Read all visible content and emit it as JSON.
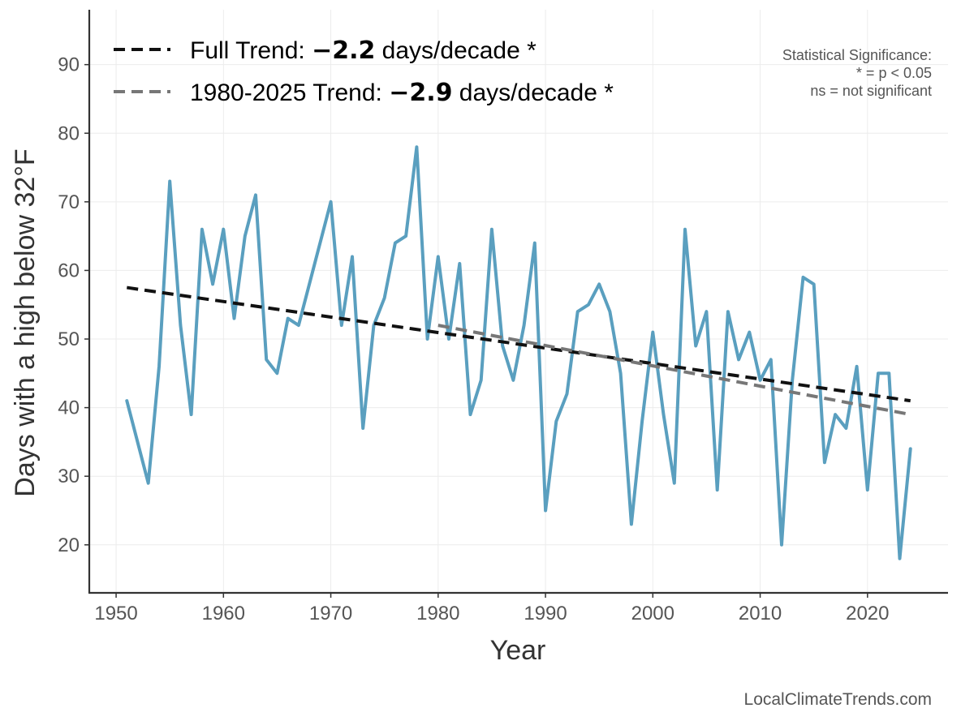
{
  "chart_data": {
    "type": "line",
    "title": "",
    "xlabel": "Year",
    "ylabel": "Days with a high below 32°F",
    "xlim": [
      1947.5,
      2027.5
    ],
    "ylim": [
      13,
      98
    ],
    "x_ticks": [
      1950,
      1960,
      1970,
      1980,
      1990,
      2000,
      2010,
      2020
    ],
    "y_ticks": [
      20,
      30,
      40,
      50,
      60,
      70,
      80,
      90
    ],
    "grid": true,
    "legend_position": "top-left",
    "series": [
      {
        "color": "#5a9fbf",
        "x": [
          1951,
          1953,
          1954,
          1955,
          1956,
          1957,
          1958,
          1959,
          1960,
          1961,
          1962,
          1963,
          1964,
          1965,
          1966,
          1967,
          1970,
          1971,
          1972,
          1973,
          1974,
          1975,
          1976,
          1977,
          1978,
          1979,
          1980,
          1981,
          1982,
          1983,
          1984,
          1985,
          1986,
          1987,
          1988,
          1989,
          1990,
          1991,
          1992,
          1993,
          1994,
          1995,
          1996,
          1997,
          1998,
          1999,
          2000,
          2001,
          2002,
          2003,
          2004,
          2005,
          2006,
          2007,
          2008,
          2009,
          2010,
          2011,
          2012,
          2013,
          2014,
          2015,
          2016,
          2017,
          2018,
          2019,
          2020,
          2021,
          2022,
          2023,
          2024
        ],
        "values": [
          41,
          29,
          46,
          73,
          52,
          39,
          66,
          58,
          66,
          53,
          65,
          71,
          47,
          45,
          53,
          52,
          70,
          52,
          62,
          37,
          52,
          56,
          64,
          65,
          78,
          50,
          62,
          50,
          61,
          39,
          44,
          66,
          49,
          44,
          52,
          64,
          25,
          38,
          42,
          54,
          55,
          58,
          54,
          45,
          23,
          38,
          51,
          39,
          29,
          66,
          49,
          54,
          28,
          54,
          47,
          51,
          44,
          47,
          20,
          44,
          59,
          58,
          32,
          39,
          37,
          46,
          28,
          45,
          45,
          18,
          34
        ]
      }
    ],
    "trend_lines": [
      {
        "label": "Full Trend: ",
        "value": "−2.2",
        "suffix": " days/decade *",
        "color": "#111111",
        "x": [
          1951,
          2024
        ],
        "y": [
          57.5,
          41.0
        ]
      },
      {
        "label": "1980-2025 Trend: ",
        "value": "−2.9",
        "suffix": " days/decade *",
        "color": "#777777",
        "x": [
          1980,
          2024
        ],
        "y": [
          52.0,
          39.0
        ]
      }
    ],
    "annotations": {
      "significance": [
        "Statistical Significance:",
        "* = p < 0.05",
        "ns = not significant"
      ],
      "source": "LocalClimateTrends.com"
    }
  }
}
